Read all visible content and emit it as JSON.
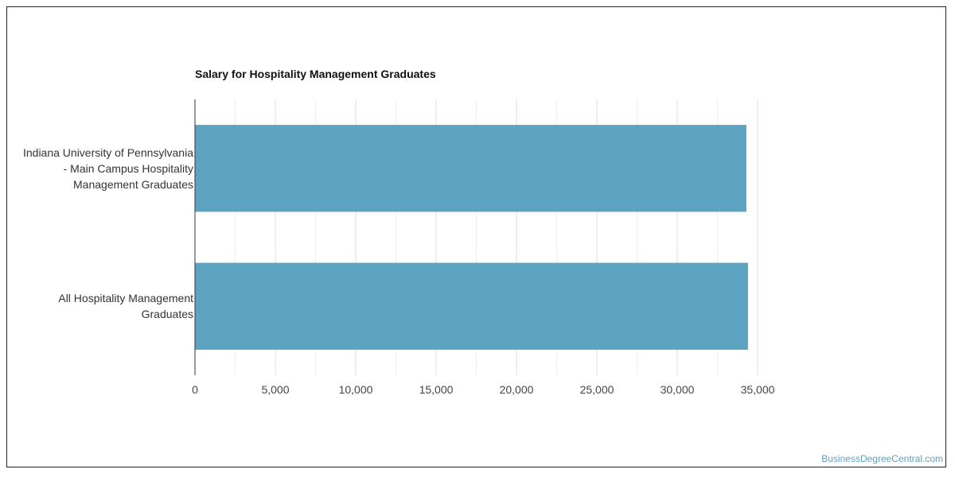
{
  "chart_data": {
    "type": "bar",
    "orientation": "horizontal",
    "title": "Salary for Hospitality Management Graduates",
    "categories": [
      [
        "Indiana University of Pennsylvania",
        "- Main Campus Hospitality",
        "Management Graduates"
      ],
      [
        "All Hospitality Management",
        "Graduates"
      ]
    ],
    "values": [
      34300,
      34400
    ],
    "xlim": [
      0,
      35000
    ],
    "ticks": [
      0,
      5000,
      10000,
      15000,
      20000,
      25000,
      30000,
      35000
    ],
    "tick_labels": [
      "0",
      "5,000",
      "10,000",
      "15,000",
      "20,000",
      "25,000",
      "30,000",
      "35,000"
    ],
    "minor_grid": true,
    "bar_color": "#5ba3c0",
    "grid_color": "#dddddd",
    "xlabel": "",
    "ylabel": ""
  },
  "watermark": "BusinessDegreeCentral.com"
}
